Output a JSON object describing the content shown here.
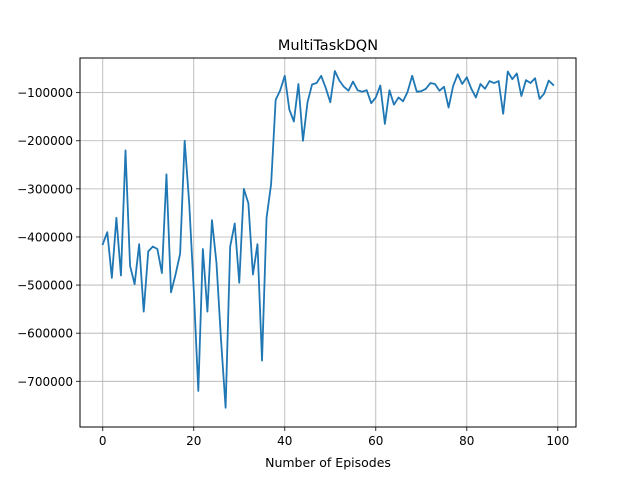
{
  "chart_data": {
    "type": "line",
    "title": "MultiTaskDQN",
    "xlabel": "Number of Episodes",
    "ylabel": "",
    "xlim": [
      -5,
      104
    ],
    "ylim": [
      -795000,
      -28000
    ],
    "grid": true,
    "legend": "none",
    "x_ticks": [
      0,
      20,
      40,
      60,
      80,
      100
    ],
    "x_tick_labels": [
      "0",
      "20",
      "40",
      "60",
      "80",
      "100"
    ],
    "y_ticks": [
      -700000,
      -600000,
      -500000,
      -400000,
      -300000,
      -200000,
      -100000
    ],
    "y_tick_labels": [
      "−700000",
      "−600000",
      "−500000",
      "−400000",
      "−300000",
      "−200000",
      "−100000"
    ],
    "series": [
      {
        "color": "#1f77b4",
        "x": [
          0,
          1,
          2,
          3,
          4,
          5,
          6,
          7,
          8,
          9,
          10,
          11,
          12,
          13,
          14,
          15,
          16,
          17,
          18,
          19,
          20,
          21,
          22,
          23,
          24,
          25,
          26,
          27,
          28,
          29,
          30,
          31,
          32,
          33,
          34,
          35,
          36,
          37,
          38,
          39,
          40,
          41,
          42,
          43,
          44,
          45,
          46,
          47,
          48,
          49,
          50,
          51,
          52,
          53,
          54,
          55,
          56,
          57,
          58,
          59,
          60,
          61,
          62,
          63,
          64,
          65,
          66,
          67,
          68,
          69,
          70,
          71,
          72,
          73,
          74,
          75,
          76,
          77,
          78,
          79,
          80,
          81,
          82,
          83,
          84,
          85,
          86,
          87,
          88,
          89,
          90,
          91,
          92,
          93,
          94,
          95,
          96,
          97,
          98,
          99
        ],
        "values": [
          -415000,
          -390000,
          -485000,
          -360000,
          -480000,
          -220000,
          -460000,
          -498000,
          -415000,
          -555000,
          -430000,
          -420000,
          -425000,
          -475000,
          -270000,
          -515000,
          -478000,
          -435000,
          -200000,
          -330000,
          -510000,
          -720000,
          -425000,
          -555000,
          -365000,
          -455000,
          -615000,
          -755000,
          -420000,
          -372000,
          -495000,
          -300000,
          -330000,
          -478000,
          -415000,
          -657000,
          -360000,
          -290000,
          -115000,
          -95000,
          -65000,
          -135000,
          -160000,
          -82000,
          -200000,
          -120000,
          -83000,
          -80000,
          -65000,
          -90000,
          -120000,
          -55000,
          -75000,
          -88000,
          -96000,
          -77000,
          -95000,
          -98000,
          -95000,
          -122000,
          -110000,
          -85000,
          -165000,
          -95000,
          -125000,
          -110000,
          -118000,
          -98000,
          -65000,
          -98000,
          -97000,
          -92000,
          -80000,
          -82000,
          -96000,
          -88000,
          -131000,
          -86000,
          -62000,
          -82000,
          -68000,
          -92000,
          -110000,
          -82000,
          -92000,
          -76000,
          -80000,
          -76000,
          -144000,
          -56000,
          -72000,
          -60000,
          -107000,
          -74000,
          -80000,
          -70000,
          -113000,
          -102000,
          -75000,
          -84000
        ]
      }
    ]
  }
}
